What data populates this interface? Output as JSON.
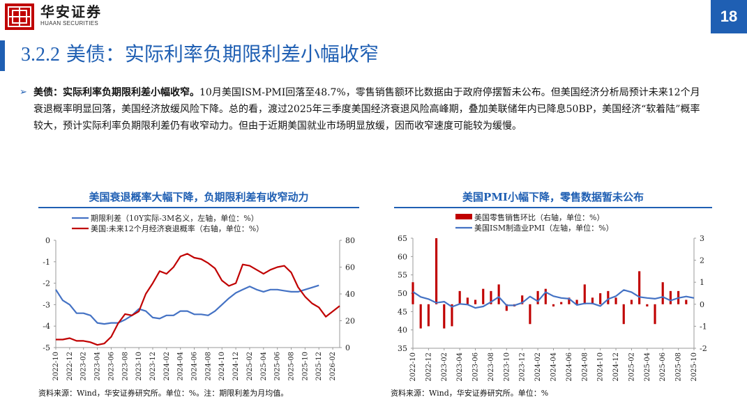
{
  "header": {
    "brand_cn": "华安证券",
    "brand_en": "HUAAN SECURITIES",
    "page_number": "18"
  },
  "slide": {
    "title_num": "3.2.2",
    "title_text": "美债：实际利率负期限利差小幅收窄"
  },
  "body": {
    "bullet_bold": "美债：实际利率负期限利差小幅收窄。",
    "bullet_text": "10月美国ISM-PMI回落至48.7%，零售销售额环比数据由于政府停摆暂未公布。但美国经济分析局预计未来12个月衰退概率明显回落，美国经济放缓风险下降。总的看，渡过2025年三季度美国经济衰退风险高峰期，叠加美联储年内已降息50BP，美国经济“软着陆”概率较大，预计实际利率负期限利差仍有收窄动力。但由于近期美国就业市场明显放缓，因而收窄速度可能较为缓慢。"
  },
  "colors": {
    "accent": "#1f5fb3",
    "blue_series": "#4472c4",
    "red_series": "#c00000"
  },
  "chart_left": {
    "title": "美国衰退概率大幅下降，负期限利差有收窄动力",
    "source": "资料来源：Wind，华安证券研究所。单位：%。注：期限利差为月均值。",
    "chart_data": {
      "type": "line",
      "title": "美国衰退概率大幅下降，负期限利差有收窄动力",
      "categories": [
        "2022-10",
        "2022-11",
        "2022-12",
        "2023-01",
        "2023-02",
        "2023-03",
        "2023-04",
        "2023-05",
        "2023-06",
        "2023-07",
        "2023-08",
        "2023-09",
        "2023-10",
        "2023-11",
        "2023-12",
        "2024-01",
        "2024-02",
        "2024-03",
        "2024-04",
        "2024-05",
        "2024-06",
        "2024-07",
        "2024-08",
        "2024-09",
        "2024-10",
        "2024-11",
        "2024-12",
        "2025-01",
        "2025-02",
        "2025-03",
        "2025-04",
        "2025-05",
        "2025-06",
        "2025-07",
        "2025-08",
        "2025-09",
        "2025-10",
        "2025-11",
        "2025-12",
        "2026-01",
        "2026-02",
        "2026-03"
      ],
      "tick_labels": [
        "2022-10",
        "2022-12",
        "2023-02",
        "2023-04",
        "2023-06",
        "2023-08",
        "2023-10",
        "2023-12",
        "2024-02",
        "2024-04",
        "2024-06",
        "2024-08",
        "2024-10",
        "2024-12",
        "2025-02",
        "2025-04",
        "2025-06",
        "2025-08",
        "2025-10",
        "2025-12",
        "2026-02"
      ],
      "series": [
        {
          "name": "期限利差（10Y实际-3M名义，左轴，单位：%）",
          "axis": "left",
          "color": "#4472c4",
          "values": [
            -2.3,
            -2.8,
            -3.0,
            -3.4,
            -3.4,
            -3.5,
            -3.85,
            -3.9,
            -3.85,
            -3.85,
            -3.7,
            -3.5,
            -3.2,
            -3.3,
            -3.6,
            -3.65,
            -3.5,
            -3.5,
            -3.3,
            -3.3,
            -3.45,
            -3.45,
            -3.5,
            -3.3,
            -3.0,
            -2.7,
            -2.45,
            -2.3,
            -2.15,
            -2.3,
            -2.4,
            -2.3,
            -2.3,
            -2.35,
            -2.4,
            -2.4,
            -2.3,
            -2.2,
            -2.1,
            null,
            null,
            null
          ]
        },
        {
          "name": "美国:未来12个月经济衰退概率（右轴，单位：%）",
          "axis": "right",
          "color": "#c00000",
          "values": [
            6,
            6,
            7,
            5,
            5,
            4,
            2,
            3,
            8,
            18,
            25,
            24,
            27,
            40,
            48,
            57,
            55,
            60,
            68,
            70,
            67,
            66,
            63,
            59,
            50,
            46,
            48,
            62,
            61,
            58,
            55,
            58,
            60,
            61,
            56,
            45,
            38,
            33,
            30,
            23,
            27,
            31
          ]
        }
      ],
      "left_axis": {
        "ylim": [
          -5,
          0
        ],
        "ticks": [
          0,
          -1,
          -2,
          -3,
          -4,
          -5
        ]
      },
      "right_axis": {
        "ylim": [
          0,
          80
        ],
        "ticks": [
          80,
          60,
          40,
          20,
          0
        ]
      },
      "legend_position": "top-left"
    }
  },
  "chart_right": {
    "title": "美国PMI小幅下降，零售数据暂未公布",
    "source": "资料来源：Wind，华安证券研究所。单位：%",
    "chart_data": {
      "type": "bar",
      "title": "美国PMI小幅下降，零售数据暂未公布",
      "categories": [
        "2022-10",
        "2022-11",
        "2022-12",
        "2023-01",
        "2023-02",
        "2023-03",
        "2023-04",
        "2023-05",
        "2023-06",
        "2023-07",
        "2023-08",
        "2023-09",
        "2023-10",
        "2023-11",
        "2023-12",
        "2024-01",
        "2024-02",
        "2024-03",
        "2024-04",
        "2024-05",
        "2024-06",
        "2024-07",
        "2024-08",
        "2024-09",
        "2024-10",
        "2024-11",
        "2024-12",
        "2025-01",
        "2025-02",
        "2025-03",
        "2025-04",
        "2025-05",
        "2025-06",
        "2025-07",
        "2025-08",
        "2025-09",
        "2025-10"
      ],
      "tick_labels": [
        "2022-10",
        "2022-12",
        "2023-02",
        "2023-04",
        "2023-06",
        "2023-08",
        "2023-10",
        "2023-12",
        "2024-02",
        "2024-04",
        "2024-06",
        "2024-08",
        "2024-10",
        "2024-12",
        "2025-02",
        "2025-04",
        "2025-06",
        "2025-08",
        "2025-10"
      ],
      "series": [
        {
          "name": "美国零售销售环比（右轴，单位：%）",
          "kind": "bar",
          "axis": "right",
          "color": "#c00000",
          "values": [
            1.0,
            -1.1,
            -1.0,
            3.0,
            -1.1,
            -1.0,
            0.6,
            0.3,
            0.2,
            0.7,
            0.6,
            0.9,
            -0.3,
            -0.1,
            0.4,
            -0.9,
            0.6,
            0.7,
            -0.1,
            0.1,
            0.3,
            0.2,
            0.9,
            0.3,
            0.5,
            0.6,
            0.3,
            -0.9,
            0.2,
            1.5,
            -0.1,
            -0.9,
            1.0,
            0.6,
            0.6,
            0.2,
            null
          ]
        },
        {
          "name": "美国ISM制造业PMI（左轴，单位：%）",
          "kind": "line",
          "axis": "left",
          "color": "#4472c4",
          "values": [
            50.4,
            49.0,
            48.4,
            47.4,
            47.7,
            46.3,
            47.1,
            46.9,
            46.0,
            46.4,
            47.6,
            49.0,
            46.7,
            46.7,
            47.4,
            49.1,
            47.8,
            50.3,
            49.2,
            48.7,
            48.5,
            46.8,
            47.2,
            47.2,
            46.5,
            48.4,
            49.2,
            50.9,
            50.3,
            49.0,
            48.7,
            48.5,
            49.0,
            48.0,
            48.7,
            49.1,
            48.7
          ]
        }
      ],
      "left_axis": {
        "ylim": [
          35,
          65
        ],
        "ticks": [
          65,
          60,
          55,
          50,
          45,
          40,
          35
        ]
      },
      "right_axis": {
        "ylim": [
          -2,
          3
        ],
        "ticks": [
          3,
          2,
          1,
          0,
          -1,
          -2
        ]
      },
      "legend_position": "top-left"
    }
  }
}
